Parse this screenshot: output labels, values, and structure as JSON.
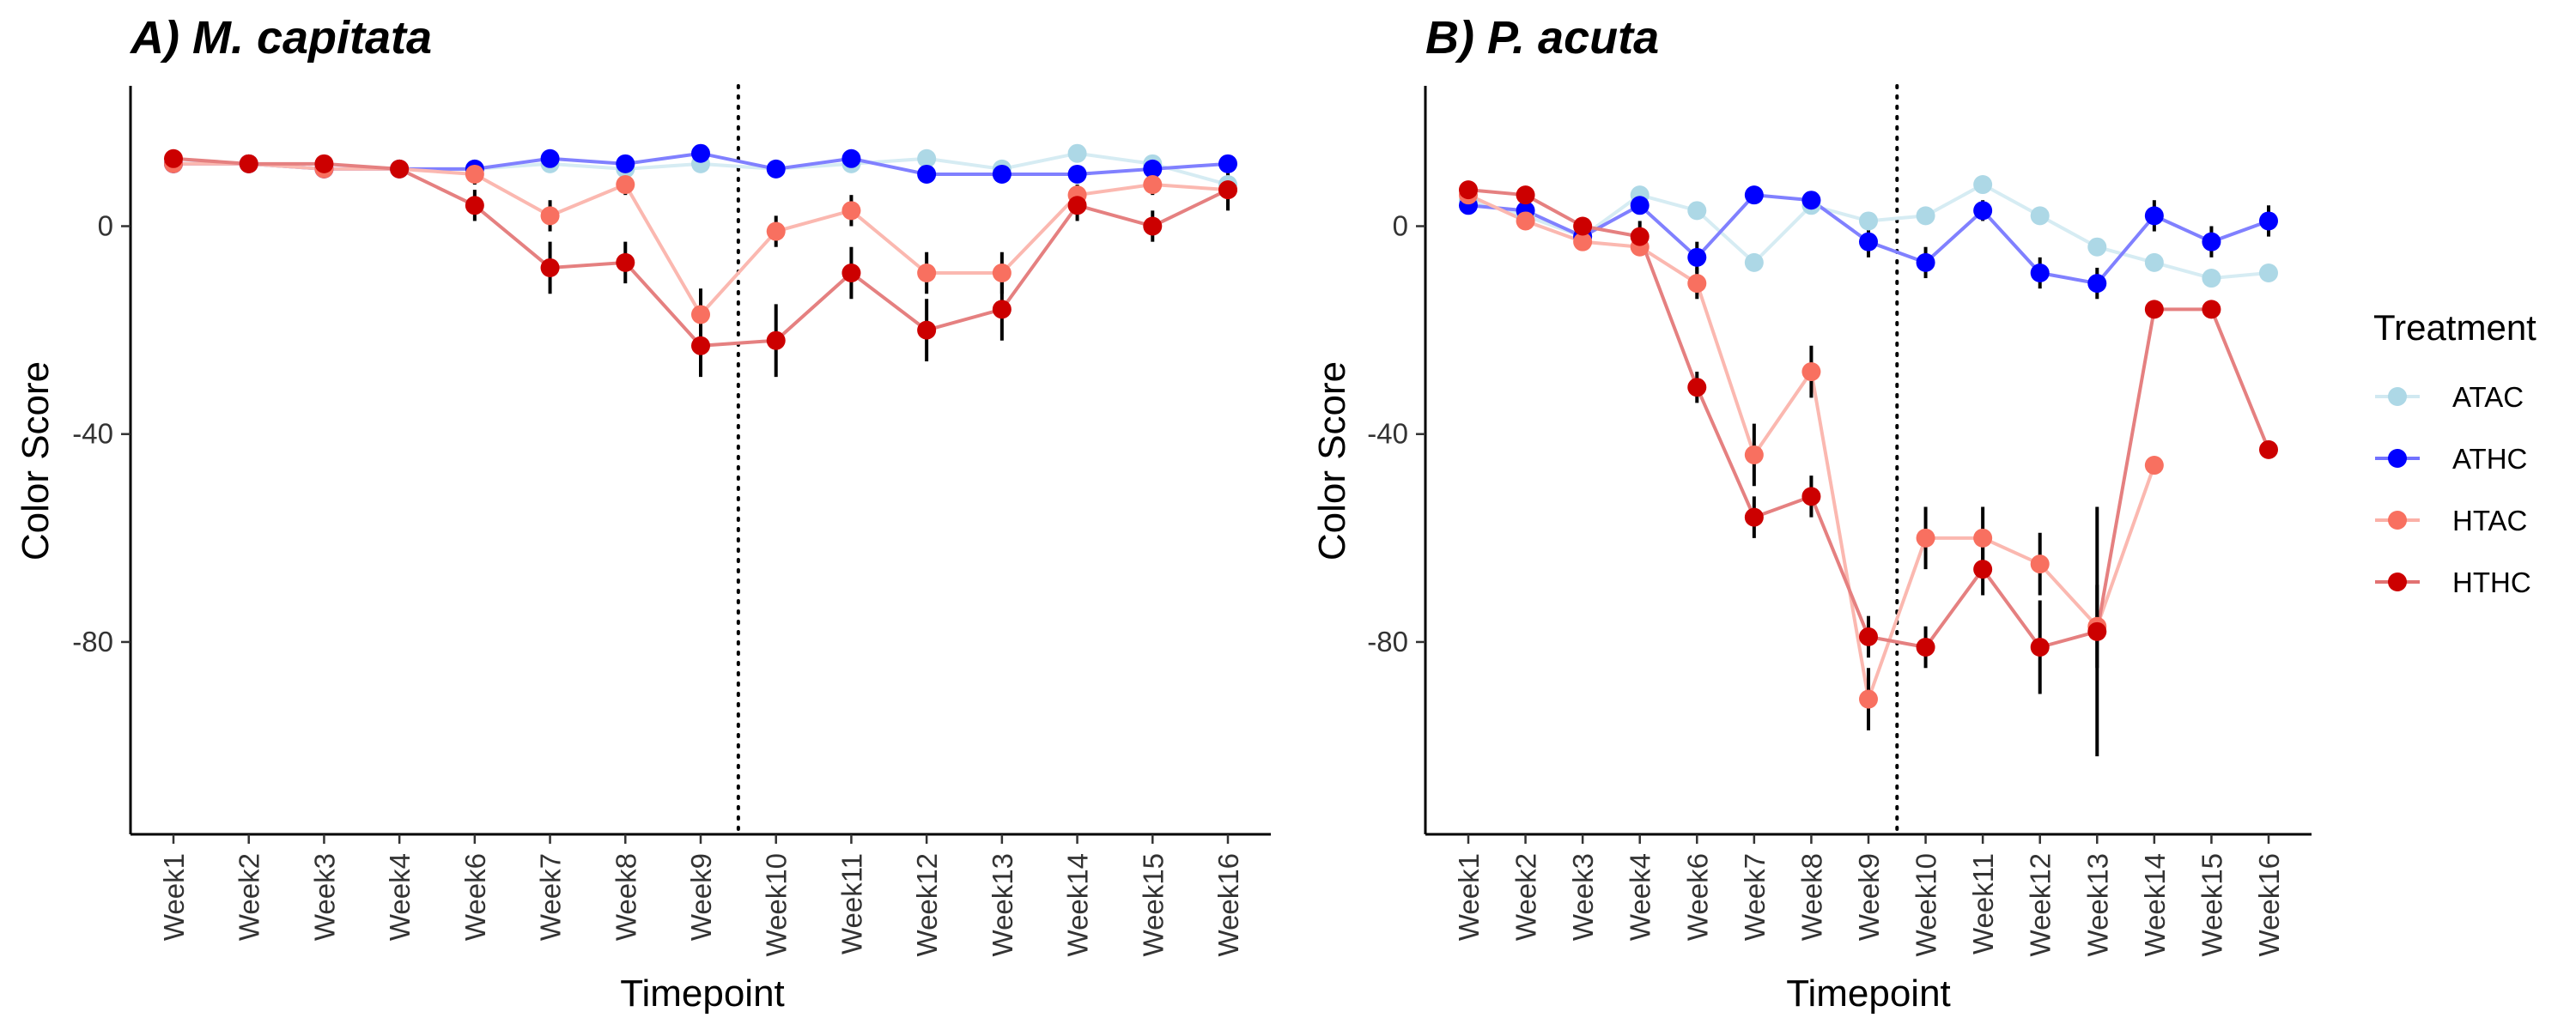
{
  "legend": {
    "title": "Treatment",
    "entries": [
      {
        "name": "ATAC",
        "color": "#ADD8E6"
      },
      {
        "name": "ATHC",
        "color": "#0000FF"
      },
      {
        "name": "HTAC",
        "color": "#F87060"
      },
      {
        "name": "HTHC",
        "color": "#CC0000"
      }
    ]
  },
  "chart_data": [
    {
      "type": "line",
      "title": "A) M. capitata",
      "xlabel": "Timepoint",
      "ylabel": "Color Score",
      "categories": [
        "Week1",
        "Week2",
        "Week3",
        "Week4",
        "Week6",
        "Week7",
        "Week8",
        "Week9",
        "Week10",
        "Week11",
        "Week12",
        "Week13",
        "Week14",
        "Week15",
        "Week16"
      ],
      "yticks": [
        0,
        -40,
        -80
      ],
      "ylim": [
        -117,
        27
      ],
      "vline_between": [
        "Week9",
        "Week10"
      ],
      "grid": false,
      "legend_position": "right",
      "series": [
        {
          "name": "ATAC",
          "color": "#ADD8E6",
          "line_color": "#D6ECF3",
          "values": [
            12,
            12,
            11,
            11,
            11,
            12,
            11,
            12,
            11,
            12,
            13,
            11,
            14,
            12,
            8
          ],
          "err": [
            0,
            0,
            0,
            0,
            0,
            0,
            0,
            0,
            0,
            0,
            0,
            0,
            0,
            0,
            0
          ]
        },
        {
          "name": "ATHC",
          "color": "#0000FF",
          "line_color": "#8080FF",
          "values": [
            12,
            12,
            11,
            11,
            11,
            13,
            12,
            14,
            11,
            13,
            10,
            10,
            10,
            11,
            12
          ],
          "err": [
            0,
            0,
            0,
            0,
            0,
            0,
            0,
            0,
            0,
            0,
            0,
            0,
            0,
            0,
            0
          ]
        },
        {
          "name": "HTAC",
          "color": "#F87060",
          "line_color": "#FBB8B0",
          "values": [
            12,
            12,
            11,
            11,
            10,
            2,
            8,
            -17,
            -1,
            3,
            -9,
            -9,
            6,
            8,
            7
          ],
          "err": [
            0,
            0,
            0,
            0,
            2,
            3,
            2,
            5,
            3,
            3,
            4,
            4,
            2,
            2,
            2
          ]
        },
        {
          "name": "HTHC",
          "color": "#CC0000",
          "line_color": "#E58080",
          "values": [
            13,
            12,
            12,
            11,
            4,
            -8,
            -7,
            -23,
            -22,
            -9,
            -20,
            -16,
            4,
            0,
            7
          ],
          "err": [
            0,
            0,
            0,
            0,
            3,
            5,
            4,
            6,
            7,
            5,
            6,
            6,
            3,
            3,
            4
          ]
        }
      ]
    },
    {
      "type": "line",
      "title": "B) P. acuta",
      "xlabel": "Timepoint",
      "ylabel": "Color Score",
      "categories": [
        "Week1",
        "Week2",
        "Week3",
        "Week4",
        "Week6",
        "Week7",
        "Week8",
        "Week9",
        "Week10",
        "Week11",
        "Week12",
        "Week13",
        "Week14",
        "Week15",
        "Week16"
      ],
      "yticks": [
        0,
        -40,
        -80
      ],
      "ylim": [
        -117,
        27
      ],
      "vline_between": [
        "Week9",
        "Week10"
      ],
      "grid": false,
      "legend_position": "right",
      "series": [
        {
          "name": "ATAC",
          "color": "#ADD8E6",
          "line_color": "#D6ECF3",
          "values": [
            5,
            2,
            -2,
            6,
            3,
            -7,
            4,
            1,
            2,
            8,
            2,
            -4,
            -7,
            -10,
            -9
          ],
          "err": [
            0,
            0,
            0,
            0,
            0,
            0,
            0,
            0,
            0,
            0,
            0,
            0,
            0,
            0,
            0
          ]
        },
        {
          "name": "ATHC",
          "color": "#0000FF",
          "line_color": "#8080FF",
          "values": [
            4,
            3,
            -2,
            4,
            -6,
            6,
            5,
            -3,
            -7,
            3,
            -9,
            -11,
            2,
            -3,
            1
          ],
          "err": [
            0,
            0,
            0,
            0,
            3,
            0,
            0,
            3,
            3,
            2,
            3,
            3,
            3,
            3,
            3
          ]
        },
        {
          "name": "HTAC",
          "color": "#F87060",
          "line_color": "#FBB8B0",
          "values": [
            6,
            1,
            -3,
            -4,
            -11,
            -44,
            -28,
            -91,
            -60,
            -60,
            -65,
            -77,
            -46,
            null,
            null
          ],
          "err": [
            0,
            0,
            0,
            0,
            3,
            6,
            5,
            6,
            6,
            6,
            6,
            8,
            0,
            0,
            0
          ]
        },
        {
          "name": "HTHC",
          "color": "#CC0000",
          "line_color": "#E58080",
          "values": [
            7,
            6,
            0,
            -2,
            -31,
            -56,
            -52,
            -79,
            -81,
            -66,
            -81,
            -78,
            -16,
            -16,
            -43
          ],
          "err": [
            0,
            0,
            0,
            3,
            3,
            4,
            4,
            4,
            4,
            5,
            9,
            24,
            0,
            0,
            0
          ]
        }
      ]
    }
  ]
}
